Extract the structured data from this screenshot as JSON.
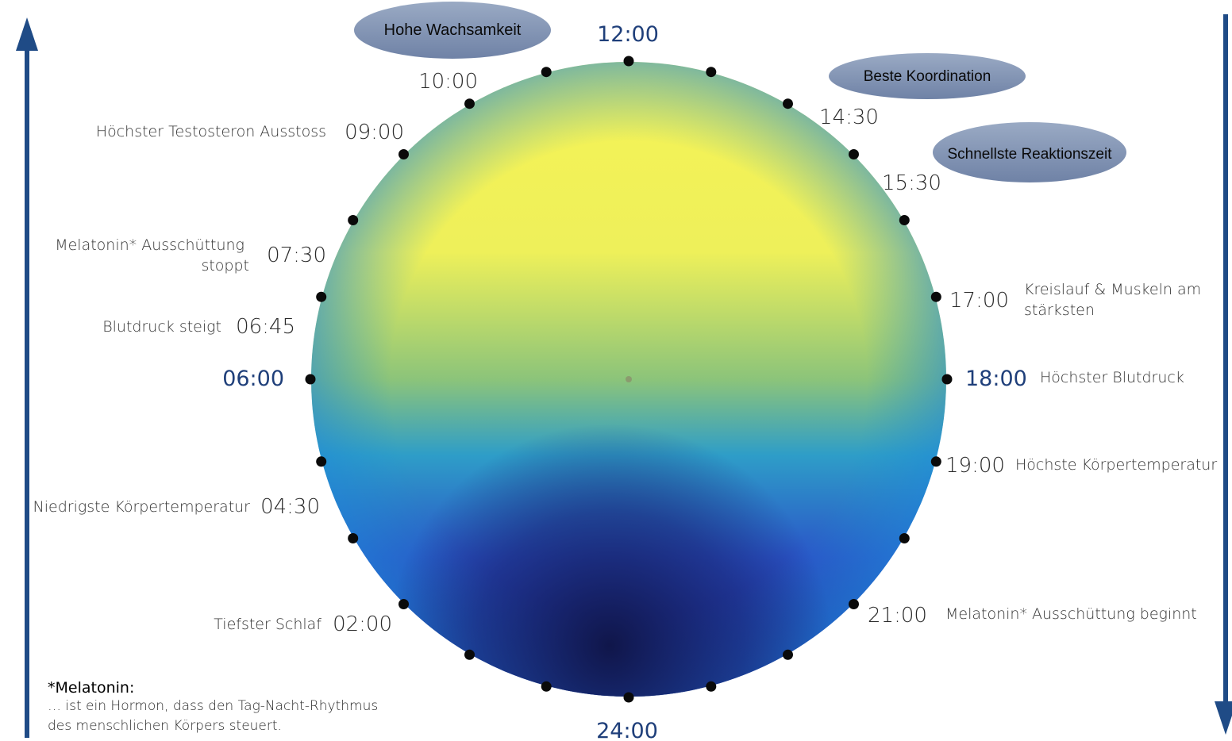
{
  "main_times": {
    "top": "12:00",
    "bottom": "24:00",
    "left": "06:00",
    "right": "18:00"
  },
  "clock_points": [
    {
      "time": "10:00",
      "label": ""
    },
    {
      "time": "09:00",
      "label": "Höchster Testosteron Ausstoss"
    },
    {
      "time": "07:30",
      "label": "Melatonin* Ausschüttung stoppt"
    },
    {
      "time": "06:45",
      "label": "Blutdruck steigt"
    },
    {
      "time": "04:30",
      "label": "Niedrigste Körpertemperatur"
    },
    {
      "time": "02:00",
      "label": "Tiefster Schlaf"
    },
    {
      "time": "14:30",
      "label": ""
    },
    {
      "time": "15:30",
      "label": ""
    },
    {
      "time": "17:00",
      "label": "Kreislauf & Muskeln am stärksten"
    },
    {
      "time": "18:00",
      "label": "Höchster Blutdruck"
    },
    {
      "time": "19:00",
      "label": "Höchste Körpertemperatur"
    },
    {
      "time": "21:00",
      "label": "Melatonin* Ausschüttung beginnt"
    }
  ],
  "bubbles": {
    "wachsamkeit": "Hohe Wachsamkeit",
    "koordination": "Beste Koordination",
    "reaktion": "Schnellste Reaktionszeit"
  },
  "note": {
    "title": "*Melatonin:",
    "body_line1": "… ist ein Hormon, dass den Tag-Nacht-Rhythmus",
    "body_line2": "des menschlichen Körpers steuert."
  },
  "colors": {
    "day": "#f5f255",
    "mid": "#1e90d0",
    "night": "#141c5a",
    "arrow": "#1f4b86",
    "bubble": "#8a9bb8"
  }
}
